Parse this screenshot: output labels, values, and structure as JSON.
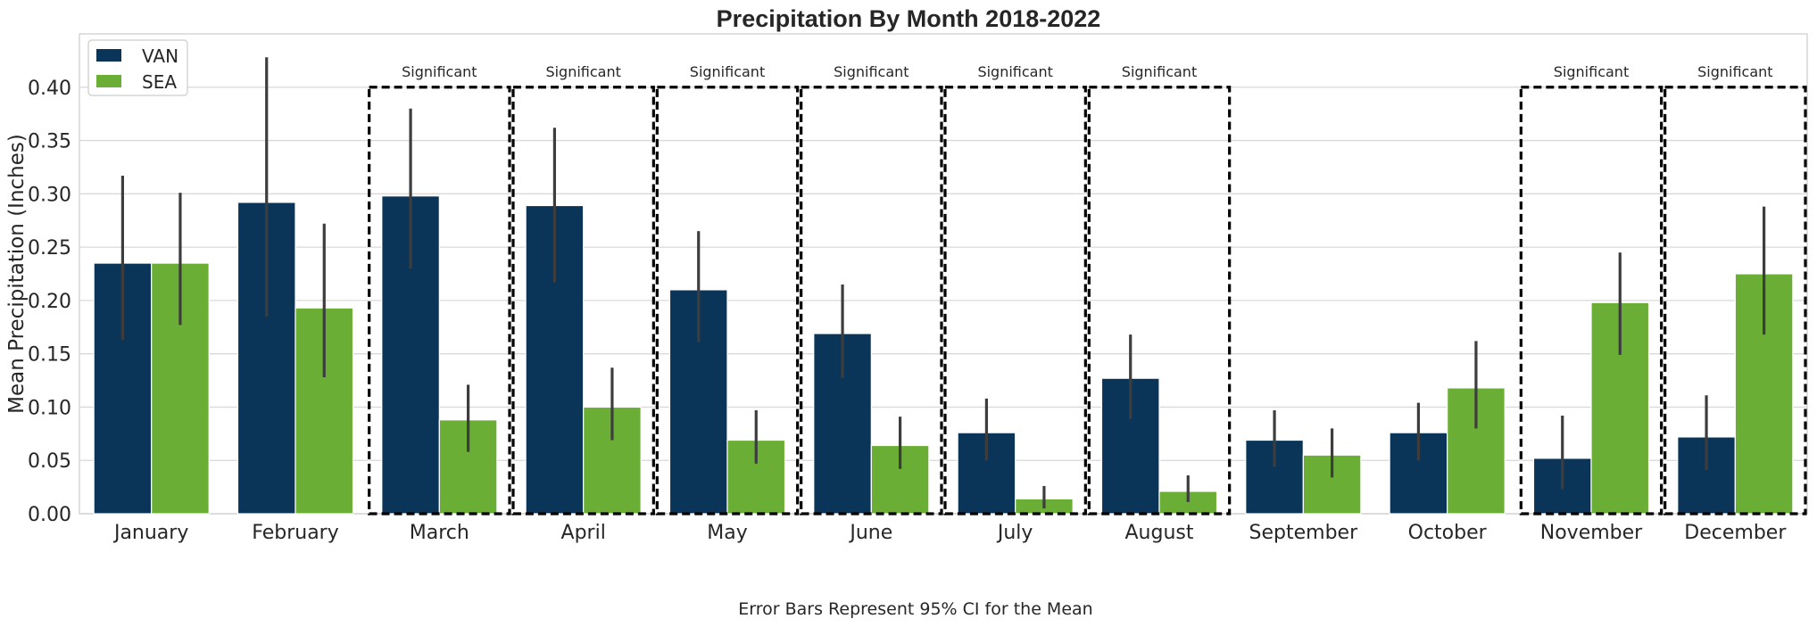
{
  "chart_data": {
    "type": "bar",
    "title": "Precipitation By Month 2018-2022",
    "xlabel": "",
    "ylabel": "Mean Precipitation (Inches)",
    "caption": "Error Bars Represent 95% CI for the Mean",
    "ylim": [
      0,
      0.45
    ],
    "yticks": [
      "0.00",
      "0.05",
      "0.10",
      "0.15",
      "0.20",
      "0.25",
      "0.30",
      "0.35",
      "0.40"
    ],
    "grid": "horizontal",
    "legend_position": "top-left",
    "categories": [
      "January",
      "February",
      "March",
      "April",
      "May",
      "June",
      "July",
      "August",
      "September",
      "October",
      "November",
      "December"
    ],
    "series": [
      {
        "name": "VAN",
        "color": "#0b3558",
        "values": [
          0.235,
          0.292,
          0.298,
          0.289,
          0.21,
          0.169,
          0.076,
          0.127,
          0.069,
          0.076,
          0.052,
          0.072
        ],
        "ci_low": [
          0.163,
          0.185,
          0.23,
          0.217,
          0.161,
          0.127,
          0.05,
          0.089,
          0.044,
          0.05,
          0.023,
          0.041
        ],
        "ci_high": [
          0.317,
          0.428,
          0.38,
          0.362,
          0.265,
          0.215,
          0.108,
          0.168,
          0.097,
          0.104,
          0.092,
          0.111
        ]
      },
      {
        "name": "SEA",
        "color": "#6aae35",
        "values": [
          0.235,
          0.193,
          0.088,
          0.1,
          0.069,
          0.064,
          0.014,
          0.021,
          0.055,
          0.118,
          0.198,
          0.225
        ],
        "ci_low": [
          0.177,
          0.128,
          0.058,
          0.069,
          0.047,
          0.042,
          0.005,
          0.011,
          0.034,
          0.08,
          0.149,
          0.168
        ],
        "ci_high": [
          0.301,
          0.272,
          0.121,
          0.137,
          0.097,
          0.091,
          0.026,
          0.036,
          0.08,
          0.162,
          0.245,
          0.288
        ]
      }
    ],
    "significance": {
      "label": "Significant",
      "months": [
        "March",
        "April",
        "May",
        "June",
        "July",
        "August",
        "November",
        "December"
      ],
      "box_top": 0.4
    }
  }
}
